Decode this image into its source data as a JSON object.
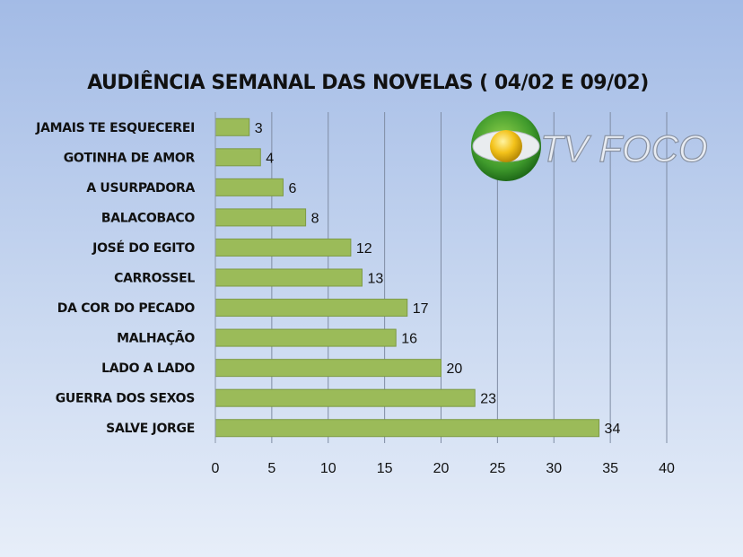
{
  "chart_data": {
    "type": "bar",
    "orientation": "horizontal",
    "title": "AUDIÊNCIA SEMANAL DAS NOVELAS ( 04/02 E 09/02)",
    "categories": [
      "JAMAIS TE ESQUECEREI",
      "GOTINHA DE AMOR",
      "A USURPADORA",
      "BALACOBACO",
      "JOSÉ DO EGITO",
      "CARROSSEL",
      "DA COR DO PECADO",
      "MALHAÇÃO",
      "LADO A LADO",
      "GUERRA DOS SEXOS",
      "SALVE JORGE"
    ],
    "values": [
      3,
      4,
      6,
      8,
      12,
      13,
      17,
      16,
      20,
      23,
      34
    ],
    "xlim": [
      0,
      40
    ],
    "xticks": [
      0,
      5,
      10,
      15,
      20,
      25,
      30,
      35,
      40
    ],
    "xlabel": "",
    "ylabel": "",
    "grid": true,
    "data_labels": true,
    "bar_color": "#9bbb59"
  },
  "logo": {
    "text": "TV FOCO"
  }
}
